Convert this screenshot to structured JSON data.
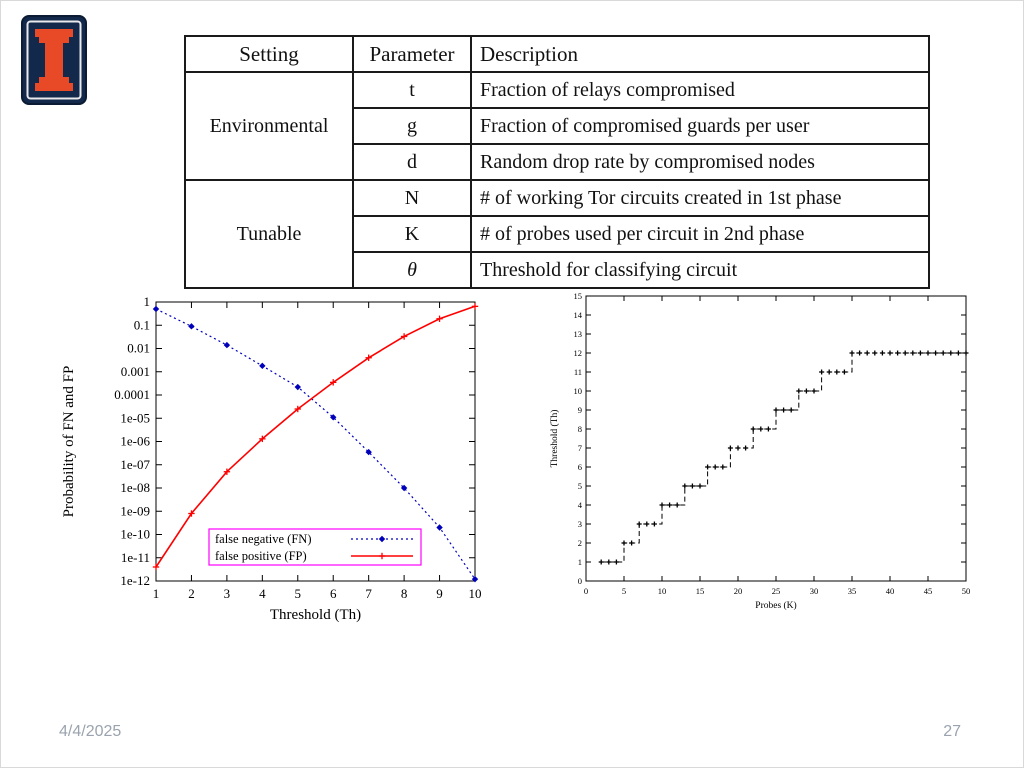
{
  "slide": {
    "date": "4/4/2025",
    "page_number": "27"
  },
  "logo": {
    "name": "university-of-illinois-block-i-logo",
    "navy": "#13294b",
    "orange": "#e84a27"
  },
  "table": {
    "headers": {
      "setting": "Setting",
      "parameter": "Parameter",
      "description": "Description"
    },
    "groups": [
      {
        "setting": "Environmental",
        "rows": [
          {
            "parameter": "t",
            "description": "Fraction of relays compromised"
          },
          {
            "parameter": "g",
            "description": "Fraction of compromised guards per user"
          },
          {
            "parameter": "d",
            "description": "Random drop rate by compromised nodes"
          }
        ]
      },
      {
        "setting": "Tunable",
        "rows": [
          {
            "parameter": "N",
            "description": "# of working Tor circuits created in 1st phase"
          },
          {
            "parameter": "K",
            "description": "# of probes used per circuit in 2nd phase"
          },
          {
            "parameter": "θ",
            "description": "Threshold for classifying circuit"
          }
        ]
      }
    ]
  },
  "chart_data": [
    {
      "type": "line",
      "title": "",
      "xlabel": "Threshold (Th)",
      "ylabel": "Probability of FN and FP",
      "yscale": "log",
      "xlim": [
        1,
        10
      ],
      "ylim": [
        1e-12,
        1
      ],
      "xticks": [
        1,
        2,
        3,
        4,
        5,
        6,
        7,
        8,
        9,
        10
      ],
      "ytick_labels": [
        "1",
        "0.1",
        "0.01",
        "0.001",
        "0.0001",
        "1e-05",
        "1e-06",
        "1e-07",
        "1e-08",
        "1e-09",
        "1e-10",
        "1e-11",
        "1e-12"
      ],
      "x": [
        1,
        2,
        3,
        4,
        5,
        6,
        7,
        8,
        9,
        10
      ],
      "series": [
        {
          "name": "false negative (FN)",
          "color": "#0000bb",
          "style": "dotted",
          "marker": "diamond",
          "values": [
            0.5,
            0.09,
            0.014,
            0.0018,
            0.00022,
            1.1e-05,
            3.5e-07,
            1e-08,
            2e-10,
            1.2e-12
          ]
        },
        {
          "name": "false positive (FP)",
          "color": "#ff0000",
          "style": "solid",
          "marker": "plus",
          "values": [
            4e-12,
            8e-10,
            5e-08,
            1.3e-06,
            2.5e-05,
            0.00035,
            0.004,
            0.033,
            0.19,
            0.65
          ]
        }
      ],
      "legend": {
        "position": "bottom-left",
        "border_color": "#ff00ff"
      },
      "grid": false
    },
    {
      "type": "line",
      "title": "",
      "xlabel": "Probes (K)",
      "ylabel": "Threshold (Th)",
      "yscale": "linear",
      "xlim": [
        0,
        50
      ],
      "ylim": [
        0,
        15
      ],
      "xticks": [
        0,
        5,
        10,
        15,
        20,
        25,
        30,
        35,
        40,
        45,
        50
      ],
      "yticks": [
        0,
        1,
        2,
        3,
        4,
        5,
        6,
        7,
        8,
        9,
        10,
        11,
        12,
        13,
        14,
        15
      ],
      "series": [
        {
          "name": "threshold-vs-probes-step",
          "color": "#000000",
          "style": "dashed",
          "marker": "plus",
          "points": [
            [
              2,
              1
            ],
            [
              3,
              1
            ],
            [
              4,
              1
            ],
            [
              5,
              2
            ],
            [
              6,
              2
            ],
            [
              7,
              3
            ],
            [
              8,
              3
            ],
            [
              9,
              3
            ],
            [
              10,
              4
            ],
            [
              11,
              4
            ],
            [
              12,
              4
            ],
            [
              13,
              5
            ],
            [
              14,
              5
            ],
            [
              15,
              5
            ],
            [
              16,
              6
            ],
            [
              17,
              6
            ],
            [
              18,
              6
            ],
            [
              19,
              7
            ],
            [
              20,
              7
            ],
            [
              21,
              7
            ],
            [
              22,
              8
            ],
            [
              23,
              8
            ],
            [
              24,
              8
            ],
            [
              25,
              9
            ],
            [
              26,
              9
            ],
            [
              27,
              9
            ],
            [
              28,
              10
            ],
            [
              29,
              10
            ],
            [
              30,
              10
            ],
            [
              31,
              11
            ],
            [
              32,
              11
            ],
            [
              33,
              11
            ],
            [
              34,
              11
            ],
            [
              35,
              12
            ],
            [
              36,
              12
            ],
            [
              37,
              12
            ],
            [
              38,
              12
            ],
            [
              39,
              12
            ],
            [
              40,
              12
            ],
            [
              41,
              12
            ],
            [
              42,
              12
            ],
            [
              43,
              12
            ],
            [
              44,
              12
            ],
            [
              45,
              12
            ],
            [
              46,
              12
            ],
            [
              47,
              12
            ],
            [
              48,
              12
            ],
            [
              49,
              12
            ],
            [
              50,
              12
            ]
          ]
        }
      ],
      "legend": {
        "position": "none"
      },
      "grid": false
    }
  ]
}
